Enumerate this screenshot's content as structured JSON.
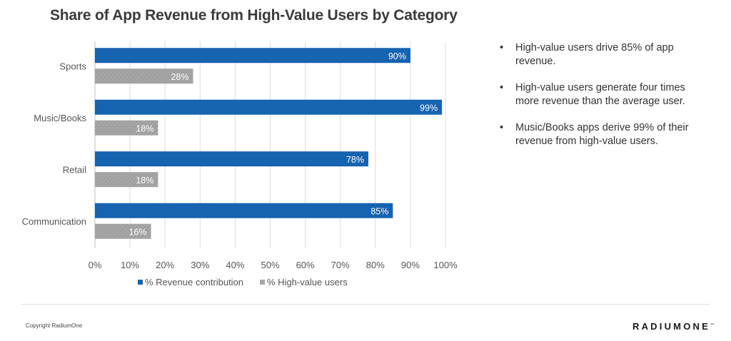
{
  "title": "Share of App Revenue from High-Value Users by Category",
  "bullets": [
    "High-value users drive 85% of app revenue.",
    "High-value users generate four times more revenue than the average user.",
    "Music/Books apps derive 99% of their revenue from high-value users."
  ],
  "footer": {
    "copyright": "Copyright RadiumOne",
    "logo": "RADIUMONE",
    "logo_mark": "™"
  },
  "chart_data": {
    "type": "bar",
    "orientation": "horizontal",
    "categories": [
      "Sports",
      "Music/Books",
      "Retail",
      "Communication"
    ],
    "series": [
      {
        "name": "% Revenue contribution",
        "color": "#1663b0",
        "values": [
          90,
          99,
          78,
          85
        ],
        "labels": [
          "90%",
          "99%",
          "78%",
          "85%"
        ]
      },
      {
        "name": "% High-value users",
        "color": "#a6a6a6",
        "values": [
          28,
          18,
          18,
          16
        ],
        "labels": [
          "28%",
          "18%",
          "18%",
          "16%"
        ]
      }
    ],
    "xlim": [
      0,
      100
    ],
    "xticks": [
      "0%",
      "10%",
      "20%",
      "30%",
      "40%",
      "50%",
      "60%",
      "70%",
      "80%",
      "90%",
      "100%"
    ],
    "grid": true,
    "legend_position": "bottom"
  }
}
